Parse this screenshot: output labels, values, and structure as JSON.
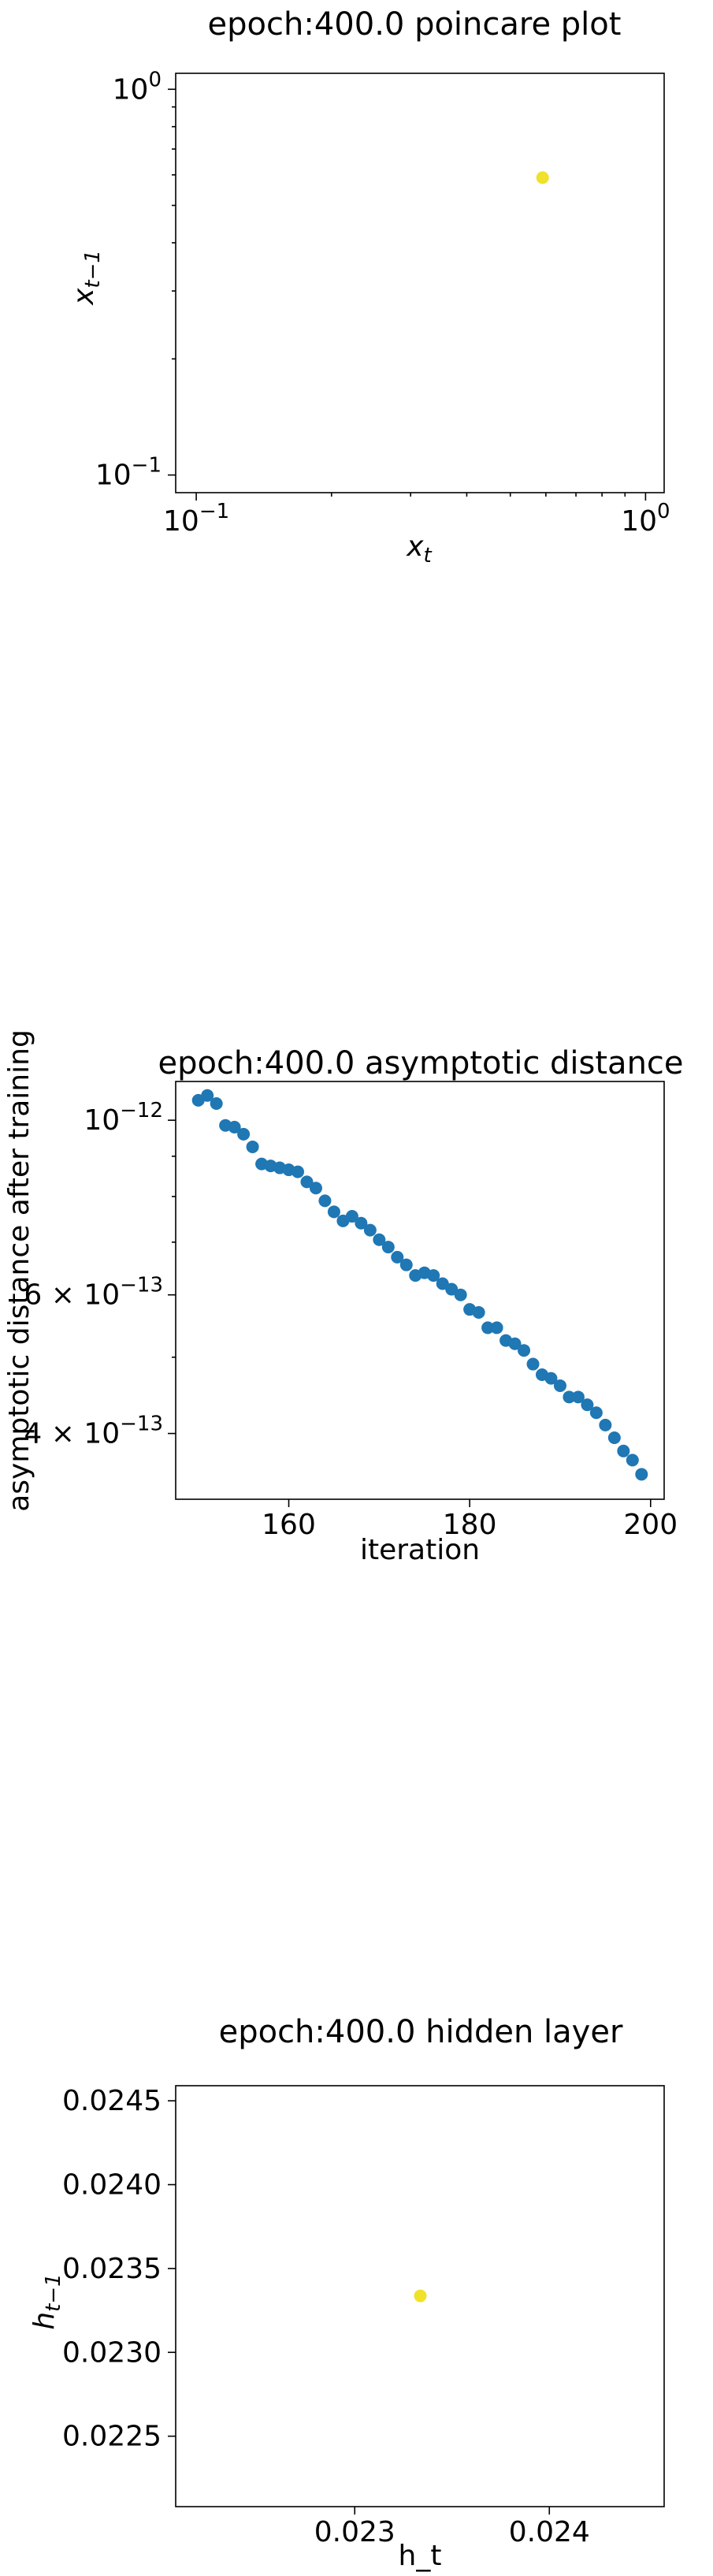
{
  "chart_data": [
    {
      "type": "scatter",
      "title": "epoch:400.0 poincare plot",
      "xlabel": "x",
      "xlabel_sub": "t",
      "ylabel": "x",
      "ylabel_sub": "t−1",
      "xscale": "log",
      "yscale": "log",
      "xlim": [
        0.09,
        1.1
      ],
      "ylim": [
        0.09,
        1.1
      ],
      "xticks": [
        {
          "value": 0.1,
          "base": "10",
          "exp": "−1"
        },
        {
          "value": 1.0,
          "base": "10",
          "exp": "0"
        }
      ],
      "yticks": [
        {
          "value": 0.1,
          "base": "10",
          "exp": "−1"
        },
        {
          "value": 1.0,
          "base": "10",
          "exp": "0"
        }
      ],
      "points": [
        {
          "x": 0.59,
          "y": 0.59
        }
      ],
      "marker_color": "#f0e12a",
      "grid": false
    },
    {
      "type": "scatter",
      "title": "epoch:400.0 asymptotic distance",
      "xlabel": "iteration",
      "ylabel": "asymptotic distance after training",
      "yscale": "log",
      "xlim": [
        147.5,
        201.5
      ],
      "ylim": [
        3.3e-13,
        1.12e-12
      ],
      "xticks": [
        {
          "value": 160,
          "label": "160"
        },
        {
          "value": 180,
          "label": "180"
        },
        {
          "value": 200,
          "label": "200"
        }
      ],
      "yticks": [
        {
          "value": 1e-12,
          "mant": "",
          "base": "10",
          "exp": "−12"
        },
        {
          "value": 6e-13,
          "mant": "6 × ",
          "base": "10",
          "exp": "−13"
        },
        {
          "value": 4e-13,
          "mant": "4 × ",
          "base": "10",
          "exp": "−13"
        }
      ],
      "x": [
        150,
        151,
        152,
        153,
        154,
        155,
        156,
        157,
        158,
        159,
        160,
        161,
        162,
        163,
        164,
        165,
        166,
        167,
        168,
        169,
        170,
        171,
        172,
        173,
        174,
        175,
        176,
        177,
        178,
        179,
        180,
        181,
        182,
        183,
        184,
        185,
        186,
        187,
        188,
        189,
        190,
        191,
        192,
        193,
        194,
        195,
        196,
        197,
        198,
        199
      ],
      "y": [
        1.06e-12,
        1.075e-12,
        1.05e-12,
        9.85e-13,
        9.8e-13,
        9.6e-13,
        9.25e-13,
        8.8e-13,
        8.75e-13,
        8.7e-13,
        8.65e-13,
        8.6e-13,
        8.35e-13,
        8.2e-13,
        7.9e-13,
        7.65e-13,
        7.45e-13,
        7.55e-13,
        7.4e-13,
        7.25e-13,
        7.05e-13,
        6.9e-13,
        6.7e-13,
        6.55e-13,
        6.35e-13,
        6.4e-13,
        6.35e-13,
        6.2e-13,
        6.1e-13,
        6e-13,
        5.75e-13,
        5.7e-13,
        5.45e-13,
        5.45e-13,
        5.25e-13,
        5.2e-13,
        5.1e-13,
        4.9e-13,
        4.75e-13,
        4.7e-13,
        4.6e-13,
        4.45e-13,
        4.45e-13,
        4.35e-13,
        4.25e-13,
        4.1e-13,
        3.95e-13,
        3.8e-13,
        3.7e-13,
        3.55e-13
      ],
      "marker_color": "#1f77b4",
      "grid": false
    },
    {
      "type": "scatter",
      "title": "epoch:400.0 hidden layer",
      "xlabel": "h_t",
      "ylabel": "h",
      "ylabel_sub": "t−1",
      "xlim": [
        0.02208,
        0.02459
      ],
      "ylim": [
        0.02208,
        0.02459
      ],
      "xticks": [
        {
          "value": 0.023,
          "label": "0.023"
        },
        {
          "value": 0.024,
          "label": "0.024"
        }
      ],
      "yticks": [
        {
          "value": 0.0225,
          "label": "0.0225"
        },
        {
          "value": 0.023,
          "label": "0.0230"
        },
        {
          "value": 0.0235,
          "label": "0.0235"
        },
        {
          "value": 0.024,
          "label": "0.0240"
        },
        {
          "value": 0.0245,
          "label": "0.0245"
        }
      ],
      "points": [
        {
          "x": 0.023337,
          "y": 0.023337
        }
      ],
      "marker_color": "#f0e12a",
      "grid": false
    }
  ]
}
